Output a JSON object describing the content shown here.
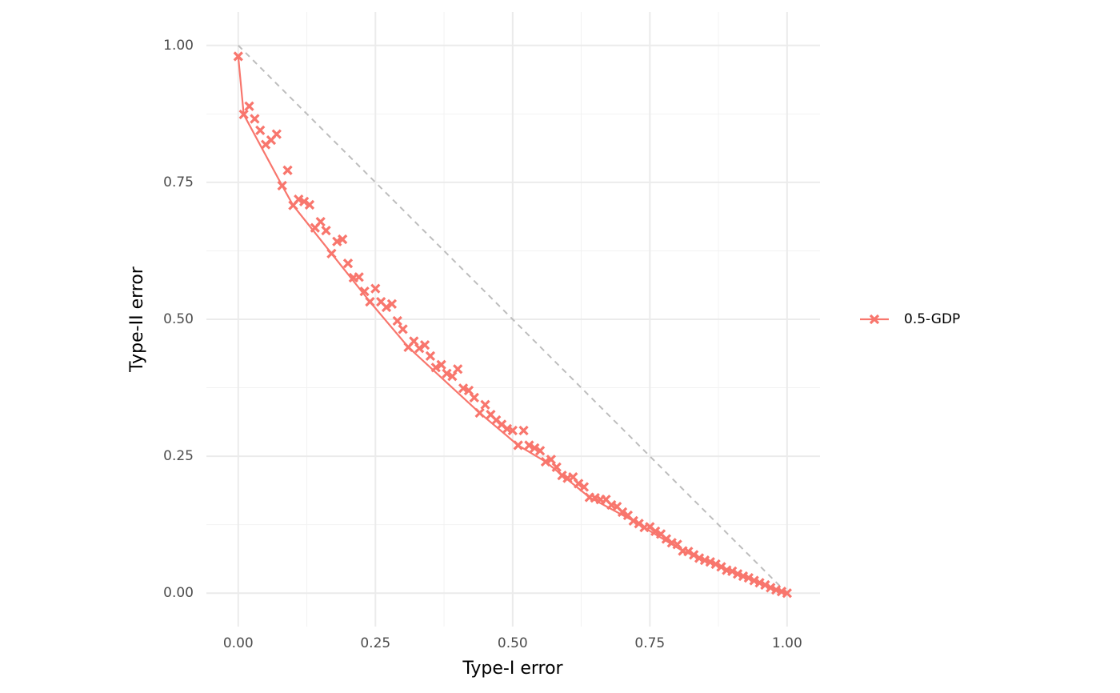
{
  "chart_data": {
    "type": "line",
    "x_label": "Type-I error",
    "y_label": "Type-II error",
    "xlim": [
      -0.058,
      1.06
    ],
    "ylim": [
      -0.061,
      1.061
    ],
    "xticks": [
      {
        "value": 0,
        "label": "0.00"
      },
      {
        "value": 0.25,
        "label": "0.25"
      },
      {
        "value": 0.5,
        "label": "0.50"
      },
      {
        "value": 0.75,
        "label": "0.75"
      },
      {
        "value": 1,
        "label": "1.00"
      }
    ],
    "yticks": [
      {
        "value": 0,
        "label": "0.00"
      },
      {
        "value": 0.25,
        "label": "0.25"
      },
      {
        "value": 0.5,
        "label": "0.50"
      },
      {
        "value": 0.75,
        "label": "0.75"
      },
      {
        "value": 1,
        "label": "1.00"
      }
    ],
    "x_minor_grid": [
      0.125,
      0.375,
      0.625,
      0.875
    ],
    "y_minor_grid": [
      0.125,
      0.375,
      0.625,
      0.875
    ],
    "grid": true,
    "legend": "right",
    "reference_line": {
      "x": [
        0,
        1
      ],
      "y": [
        1,
        0
      ],
      "color": "#bdbdbd",
      "dashed": true
    },
    "series": [
      {
        "name": "0.5-GDP",
        "color": "#F8766D",
        "x": [
          0,
          0.01,
          0.02,
          0.03,
          0.04,
          0.05,
          0.06,
          0.07,
          0.08,
          0.09,
          0.1,
          0.11,
          0.12,
          0.13,
          0.14,
          0.15,
          0.16,
          0.17,
          0.18,
          0.19,
          0.2,
          0.21,
          0.22,
          0.23,
          0.24,
          0.25,
          0.26,
          0.27,
          0.28,
          0.29,
          0.3,
          0.31,
          0.32,
          0.33,
          0.34,
          0.35,
          0.36,
          0.37,
          0.38,
          0.39,
          0.4,
          0.41,
          0.42,
          0.43,
          0.44,
          0.45,
          0.46,
          0.47,
          0.48,
          0.49,
          0.5,
          0.51,
          0.52,
          0.53,
          0.54,
          0.55,
          0.56,
          0.57,
          0.58,
          0.59,
          0.6,
          0.61,
          0.62,
          0.63,
          0.64,
          0.65,
          0.66,
          0.67,
          0.68,
          0.69,
          0.7,
          0.71,
          0.72,
          0.73,
          0.74,
          0.75,
          0.76,
          0.77,
          0.78,
          0.79,
          0.8,
          0.81,
          0.82,
          0.83,
          0.84,
          0.85,
          0.86,
          0.87,
          0.88,
          0.89,
          0.9,
          0.91,
          0.92,
          0.93,
          0.94,
          0.95,
          0.96,
          0.97,
          0.98,
          0.99,
          1
        ],
        "values": [
          0.98,
          0.874,
          0.889,
          0.866,
          0.845,
          0.819,
          0.827,
          0.838,
          0.744,
          0.772,
          0.708,
          0.719,
          0.715,
          0.709,
          0.667,
          0.678,
          0.662,
          0.62,
          0.642,
          0.646,
          0.602,
          0.576,
          0.577,
          0.551,
          0.532,
          0.556,
          0.532,
          0.522,
          0.528,
          0.497,
          0.482,
          0.449,
          0.46,
          0.447,
          0.453,
          0.433,
          0.412,
          0.417,
          0.401,
          0.396,
          0.409,
          0.374,
          0.37,
          0.357,
          0.329,
          0.344,
          0.326,
          0.316,
          0.308,
          0.3,
          0.297,
          0.27,
          0.297,
          0.27,
          0.265,
          0.26,
          0.24,
          0.244,
          0.23,
          0.215,
          0.21,
          0.212,
          0.2,
          0.194,
          0.175,
          0.174,
          0.171,
          0.171,
          0.161,
          0.158,
          0.148,
          0.142,
          0.132,
          0.127,
          0.12,
          0.121,
          0.113,
          0.108,
          0.099,
          0.092,
          0.089,
          0.077,
          0.076,
          0.07,
          0.064,
          0.06,
          0.057,
          0.053,
          0.048,
          0.042,
          0.04,
          0.035,
          0.031,
          0.028,
          0.023,
          0.019,
          0.015,
          0.01,
          0.006,
          0.003,
          0
        ],
        "line_x": [
          0,
          0.01,
          0.08,
          0.1,
          0.17,
          0.24,
          0.31,
          0.44,
          0.51,
          0.56,
          0.64,
          0.72,
          0.81,
          0.9,
          0.97,
          1
        ],
        "line_y": [
          0.98,
          0.874,
          0.744,
          0.708,
          0.62,
          0.532,
          0.449,
          0.329,
          0.27,
          0.24,
          0.175,
          0.132,
          0.077,
          0.04,
          0.01,
          0
        ]
      }
    ]
  }
}
